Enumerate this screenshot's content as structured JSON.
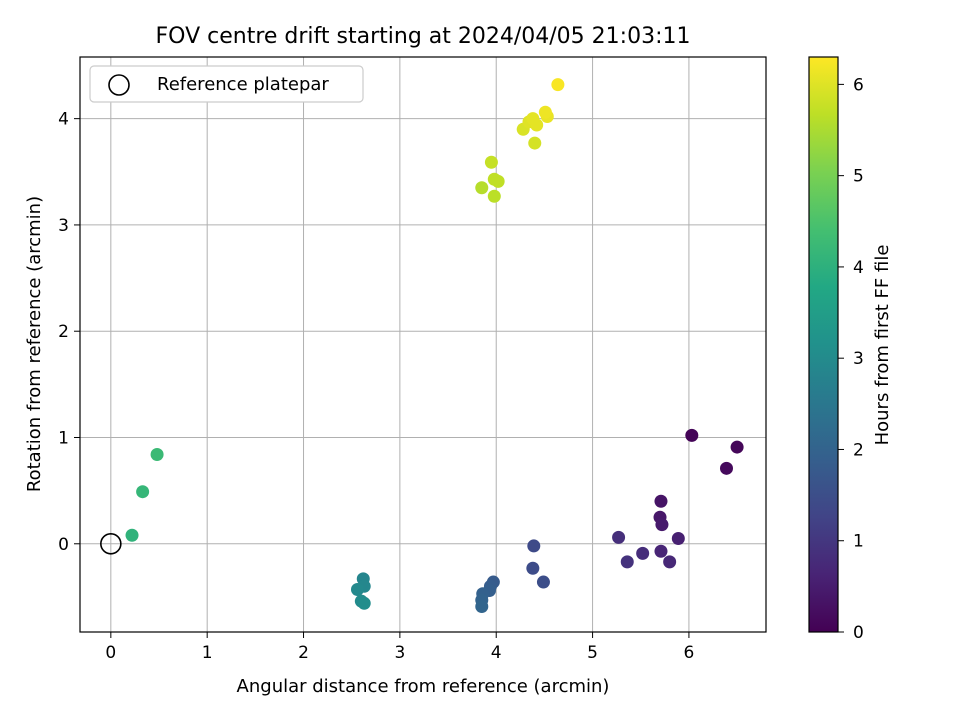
{
  "chart_data": {
    "type": "scatter",
    "title": "FOV centre drift starting at 2024/04/05 21:03:11",
    "xlabel": "Angular distance from reference (arcmin)",
    "ylabel": "Rotation from reference (arcmin)",
    "xlim": [
      -0.32,
      6.8
    ],
    "ylim": [
      -0.83,
      4.58
    ],
    "xticks": [
      0,
      1,
      2,
      3,
      4,
      5,
      6
    ],
    "yticks": [
      0,
      1,
      2,
      3,
      4
    ],
    "grid": true,
    "legend": {
      "placement": "top-left",
      "entries": [
        {
          "label": "Reference platepar",
          "marker": "open-circle",
          "x": 0,
          "y": 0
        }
      ]
    },
    "colorbar": {
      "label": "Hours from first FF file",
      "colormap": "viridis",
      "range": [
        0,
        6.3
      ],
      "ticks": [
        0,
        1,
        2,
        3,
        4,
        5,
        6
      ]
    },
    "points": [
      {
        "x": 6.03,
        "y": 1.02,
        "hours": 0.05
      },
      {
        "x": 6.5,
        "y": 0.91,
        "hours": 0.1
      },
      {
        "x": 6.39,
        "y": 0.71,
        "hours": 0.15
      },
      {
        "x": 5.71,
        "y": 0.4,
        "hours": 0.35
      },
      {
        "x": 5.7,
        "y": 0.25,
        "hours": 0.4
      },
      {
        "x": 5.72,
        "y": 0.18,
        "hours": 0.45
      },
      {
        "x": 5.89,
        "y": 0.05,
        "hours": 0.55
      },
      {
        "x": 5.71,
        "y": -0.07,
        "hours": 0.65
      },
      {
        "x": 5.8,
        "y": -0.17,
        "hours": 0.7
      },
      {
        "x": 5.52,
        "y": -0.09,
        "hours": 0.8
      },
      {
        "x": 5.27,
        "y": 0.06,
        "hours": 0.85
      },
      {
        "x": 5.36,
        "y": -0.17,
        "hours": 0.9
      },
      {
        "x": 4.39,
        "y": -0.02,
        "hours": 1.4
      },
      {
        "x": 4.38,
        "y": -0.23,
        "hours": 1.45
      },
      {
        "x": 4.49,
        "y": -0.36,
        "hours": 1.5
      },
      {
        "x": 3.97,
        "y": -0.36,
        "hours": 1.8
      },
      {
        "x": 3.94,
        "y": -0.4,
        "hours": 1.85
      },
      {
        "x": 3.93,
        "y": -0.44,
        "hours": 1.9
      },
      {
        "x": 3.86,
        "y": -0.47,
        "hours": 1.95
      },
      {
        "x": 3.85,
        "y": -0.53,
        "hours": 2.0
      },
      {
        "x": 3.85,
        "y": -0.59,
        "hours": 2.05
      },
      {
        "x": 2.62,
        "y": -0.33,
        "hours": 2.85
      },
      {
        "x": 2.63,
        "y": -0.4,
        "hours": 2.9
      },
      {
        "x": 2.56,
        "y": -0.43,
        "hours": 2.95
      },
      {
        "x": 2.6,
        "y": -0.54,
        "hours": 3.0
      },
      {
        "x": 2.63,
        "y": -0.56,
        "hours": 3.05
      },
      {
        "x": 0.22,
        "y": 0.08,
        "hours": 4.05
      },
      {
        "x": 0.33,
        "y": 0.49,
        "hours": 4.15
      },
      {
        "x": 0.48,
        "y": 0.84,
        "hours": 4.25
      },
      {
        "x": 3.85,
        "y": 3.35,
        "hours": 5.6
      },
      {
        "x": 3.98,
        "y": 3.27,
        "hours": 5.65
      },
      {
        "x": 4.02,
        "y": 3.41,
        "hours": 5.7
      },
      {
        "x": 3.98,
        "y": 3.43,
        "hours": 5.7
      },
      {
        "x": 3.95,
        "y": 3.59,
        "hours": 5.75
      },
      {
        "x": 4.4,
        "y": 3.77,
        "hours": 5.9
      },
      {
        "x": 4.28,
        "y": 3.9,
        "hours": 5.95
      },
      {
        "x": 4.34,
        "y": 3.97,
        "hours": 6.0
      },
      {
        "x": 4.42,
        "y": 3.94,
        "hours": 6.05
      },
      {
        "x": 4.38,
        "y": 4.0,
        "hours": 6.05
      },
      {
        "x": 4.53,
        "y": 4.02,
        "hours": 6.1
      },
      {
        "x": 4.51,
        "y": 4.06,
        "hours": 6.15
      },
      {
        "x": 4.64,
        "y": 4.32,
        "hours": 6.25
      }
    ]
  }
}
